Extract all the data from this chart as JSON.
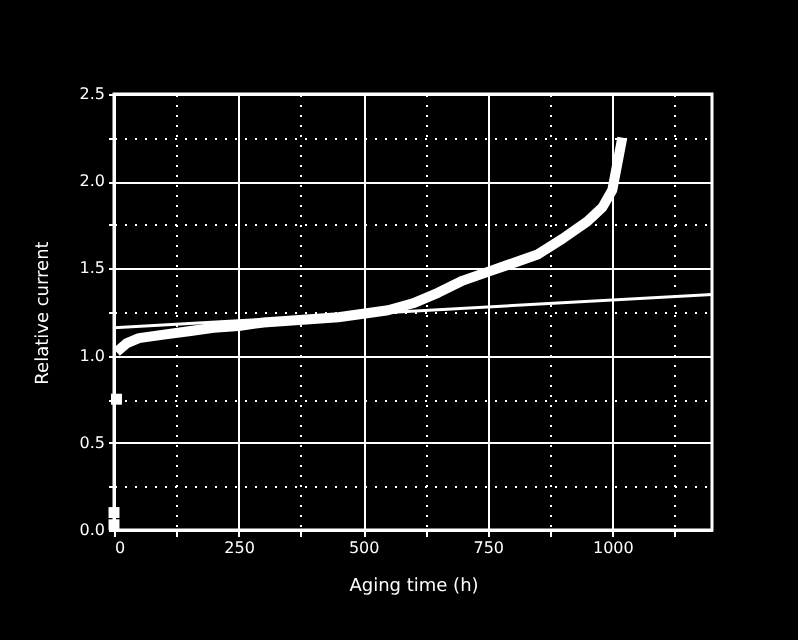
{
  "chart_data": {
    "type": "line",
    "xlabel": "Aging time (h)",
    "ylabel": "Relative current",
    "xlim": [
      0,
      1200
    ],
    "ylim": [
      0,
      2.5
    ],
    "xticks": [
      0,
      {
        "value": 125,
        "label": null
      },
      250,
      {
        "value": 375,
        "label": null
      },
      500,
      {
        "value": 625,
        "label": null
      },
      750,
      {
        "value": 875,
        "label": null
      },
      1000,
      {
        "value": 1125,
        "label": null
      }
    ],
    "yticks": [
      {
        "value": 0,
        "label": "0.0"
      },
      {
        "value": 0.25,
        "label": null
      },
      0.5,
      {
        "value": 0.75,
        "label": null
      },
      {
        "value": 1,
        "label": "1.0"
      },
      {
        "value": 1.25,
        "label": null
      },
      1.5,
      {
        "value": 1.75,
        "label": null
      },
      {
        "value": 2,
        "label": "2.0"
      },
      {
        "value": 2.25,
        "label": null
      },
      2.5
    ],
    "grid": true,
    "series": [
      {
        "type": "scatter",
        "marker": "square",
        "color": "#ffffff",
        "x": [
          0,
          0,
          5
        ],
        "values": [
          0.03,
          0.1,
          0.75
        ]
      },
      {
        "color": "#ffffff",
        "x": [
          5,
          25,
          50,
          100,
          150,
          200,
          250,
          300,
          350,
          400,
          450,
          500,
          550,
          600,
          650,
          700,
          750,
          800,
          850,
          900,
          950,
          980,
          1000,
          1010,
          1020
        ],
        "values": [
          1.02,
          1.07,
          1.1,
          1.12,
          1.14,
          1.16,
          1.17,
          1.19,
          1.2,
          1.21,
          1.22,
          1.24,
          1.26,
          1.3,
          1.36,
          1.43,
          1.48,
          1.53,
          1.58,
          1.67,
          1.77,
          1.85,
          1.95,
          2.1,
          2.25
        ]
      },
      {
        "type": "line",
        "color": "#ffffff",
        "x": [
          0,
          1200
        ],
        "values": [
          1.16,
          1.35
        ]
      }
    ]
  }
}
